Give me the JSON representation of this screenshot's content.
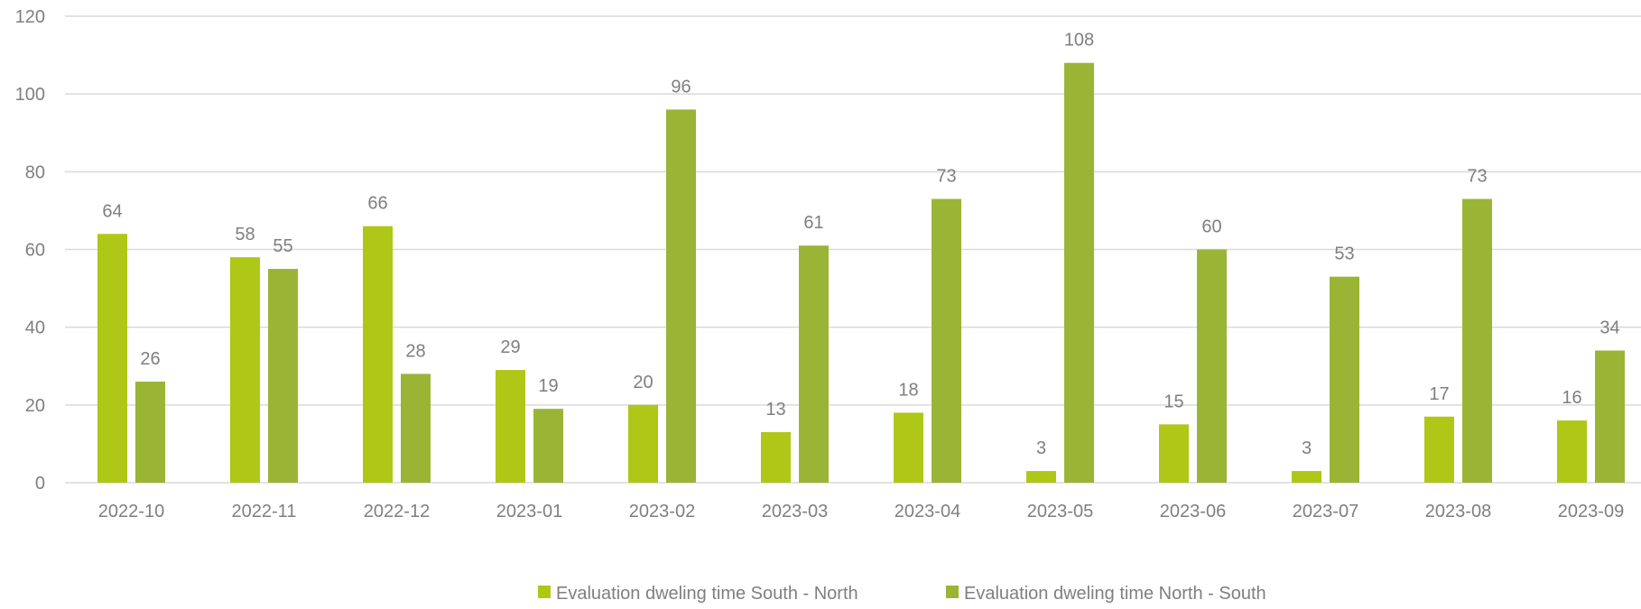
{
  "chart_data": {
    "type": "bar",
    "categories": [
      "2022-10",
      "2022-11",
      "2022-12",
      "2023-01",
      "2023-02",
      "2023-03",
      "2023-04",
      "2023-05",
      "2023-06",
      "2023-07",
      "2023-08",
      "2023-09"
    ],
    "series": [
      {
        "name": "Evaluation dweling time South - North",
        "color": "#afc716",
        "values": [
          64,
          58,
          66,
          29,
          20,
          13,
          18,
          3,
          15,
          3,
          17,
          16
        ]
      },
      {
        "name": "Evaluation dweling time North - South",
        "color": "#9ab536",
        "values": [
          26,
          55,
          28,
          19,
          96,
          61,
          73,
          108,
          60,
          53,
          73,
          34
        ]
      }
    ],
    "y_ticks": [
      "0",
      "20",
      "40",
      "60",
      "80",
      "100",
      "120"
    ],
    "ylim": [
      0,
      120
    ],
    "grid": true,
    "data_labels": true,
    "legend_position": "bottom"
  }
}
